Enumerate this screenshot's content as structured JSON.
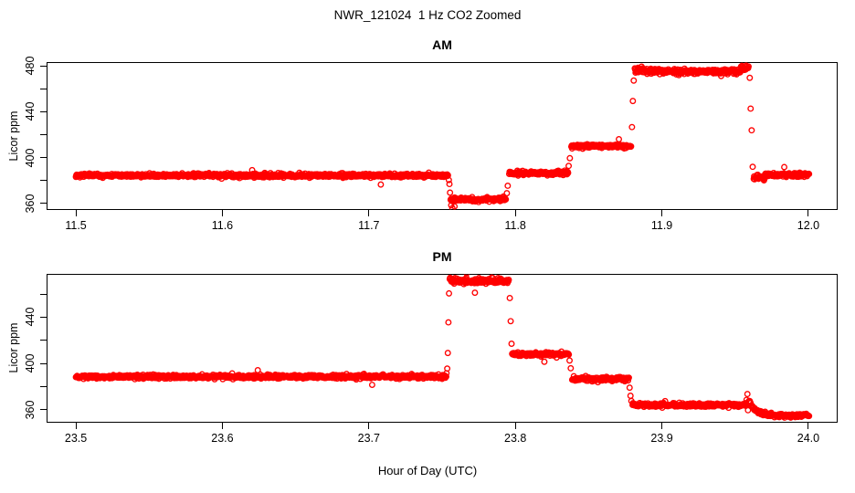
{
  "chart_data": {
    "type": "scatter",
    "marker": "open-circle",
    "point_color": "#FF0000",
    "axis_color": "#000000",
    "title": "NWR_121024  1 Hz CO2 Zoomed",
    "xlabel": "Hour of Day (UTC)",
    "legend": null,
    "grid": false,
    "panels": [
      {
        "title": "AM",
        "ylabel": "Licor ppm",
        "xlim": [
          11.48,
          12.02
        ],
        "ylim": [
          354.4,
          483.2
        ],
        "xticks": [
          {
            "v": 11.5,
            "label": "11.5"
          },
          {
            "v": 11.6,
            "label": "11.6"
          },
          {
            "v": 11.7,
            "label": "11.7"
          },
          {
            "v": 11.8,
            "label": "11.8"
          },
          {
            "v": 11.9,
            "label": "11.9"
          },
          {
            "v": 12.0,
            "label": "12.0"
          }
        ],
        "yticks": [
          {
            "v": 360,
            "label": "360"
          },
          {
            "v": 380,
            "label": ""
          },
          {
            "v": 400,
            "label": "400"
          },
          {
            "v": 420,
            "label": ""
          },
          {
            "v": 440,
            "label": "440"
          },
          {
            "v": 460,
            "label": ""
          },
          {
            "v": 480,
            "label": "480"
          }
        ],
        "segments": [
          {
            "t0": 11.5,
            "t1": 11.754,
            "v": 384.5,
            "sigma": 0.8
          },
          {
            "t0": 11.7558,
            "t1": 11.7935,
            "v": 363.5,
            "sigma": 0.8
          },
          {
            "t0": 11.7958,
            "t1": 11.836,
            "v": 386.5,
            "sigma": 0.8
          },
          {
            "t0": 11.8382,
            "t1": 11.879,
            "v": 410.0,
            "sigma": 0.8
          },
          {
            "t0": 11.8815,
            "t1": 11.887,
            "v": 476.5,
            "sigma": 1.4
          },
          {
            "t0": 11.8872,
            "t1": 11.9535,
            "v": 475.0,
            "sigma": 1.0
          },
          {
            "t0": 11.9538,
            "t1": 11.9592,
            "v": 478.5,
            "sigma": 1.2
          },
          {
            "t0": 11.9627,
            "t1": 11.97,
            "v": 383.0,
            "sigma": 1.8
          },
          {
            "t0": 11.9702,
            "t1": 12.0005,
            "v": 385.0,
            "sigma": 0.8
          }
        ],
        "transition_points": [
          [
            11.7546,
            380.5
          ],
          [
            11.755,
            377.0
          ],
          [
            11.7554,
            369.5
          ],
          [
            11.7562,
            358.5
          ],
          [
            11.757,
            356.0
          ],
          [
            11.7585,
            357.5
          ],
          [
            11.7942,
            369.0
          ],
          [
            11.7948,
            375.5
          ],
          [
            11.8364,
            392.8
          ],
          [
            11.8372,
            399.5
          ],
          [
            11.8796,
            426.6
          ],
          [
            11.8802,
            449.3
          ],
          [
            11.8808,
            467.1
          ],
          [
            11.96,
            469.5
          ],
          [
            11.9606,
            442.7
          ],
          [
            11.9613,
            423.8
          ],
          [
            11.962,
            392.0
          ]
        ]
      },
      {
        "title": "PM",
        "ylabel": "Licor ppm",
        "xlim": [
          23.48,
          24.02
        ],
        "ylim": [
          348.7,
          477.4
        ],
        "xticks": [
          {
            "v": 23.5,
            "label": "23.5"
          },
          {
            "v": 23.6,
            "label": "23.6"
          },
          {
            "v": 23.7,
            "label": "23.7"
          },
          {
            "v": 23.8,
            "label": "23.8"
          },
          {
            "v": 23.9,
            "label": "23.9"
          },
          {
            "v": 24.0,
            "label": "24.0"
          }
        ],
        "yticks": [
          {
            "v": 360,
            "label": "360"
          },
          {
            "v": 380,
            "label": ""
          },
          {
            "v": 400,
            "label": "400"
          },
          {
            "v": 420,
            "label": ""
          },
          {
            "v": 440,
            "label": "440"
          },
          {
            "v": 460,
            "label": ""
          }
        ],
        "segments": [
          {
            "t0": 23.5,
            "t1": 23.7528,
            "v": 388.5,
            "sigma": 0.8
          },
          {
            "t0": 23.7552,
            "t1": 23.7615,
            "v": 472.0,
            "sigma": 1.3
          },
          {
            "t0": 23.7618,
            "t1": 23.7955,
            "v": 471.0,
            "sigma": 1.0
          },
          {
            "t0": 23.7978,
            "t1": 23.8365,
            "v": 408.0,
            "sigma": 0.8
          },
          {
            "t0": 23.8388,
            "t1": 23.8775,
            "v": 386.5,
            "sigma": 0.8
          },
          {
            "t0": 23.88,
            "t1": 23.9575,
            "v": 364.0,
            "sigma": 0.8
          },
          {
            "type": "decay",
            "t0": 23.9595,
            "t1": 23.978,
            "from": 368.0,
            "to": 355.0,
            "tau": 0.0045,
            "sigma": 0.7
          },
          {
            "t0": 23.9782,
            "t1": 24.0005,
            "v": 355.0,
            "sigma": 0.7
          }
        ],
        "transition_points": [
          [
            23.753,
            391.5
          ],
          [
            23.7535,
            395.5
          ],
          [
            23.7539,
            409.0
          ],
          [
            23.7543,
            435.5
          ],
          [
            23.7547,
            460.5
          ],
          [
            23.7962,
            456.5
          ],
          [
            23.7968,
            436.5
          ],
          [
            23.7974,
            417.0
          ],
          [
            23.837,
            402.5
          ],
          [
            23.8378,
            395.8
          ],
          [
            23.878,
            379.0
          ],
          [
            23.8786,
            372.0
          ],
          [
            23.8792,
            367.5
          ],
          [
            23.9578,
            368.5
          ],
          [
            23.9584,
            373.5
          ],
          [
            23.9588,
            359.5
          ]
        ]
      }
    ]
  }
}
